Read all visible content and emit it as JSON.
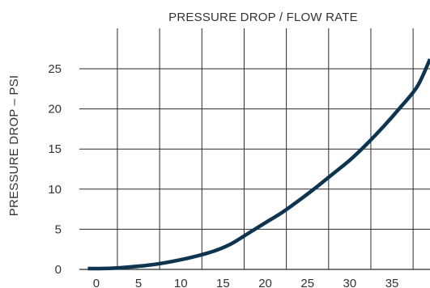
{
  "chart_data": {
    "type": "line",
    "title": "PRESSURE DROP / FLOW RATE",
    "xlabel": "",
    "ylabel": "PRESSURE DROP – PSI",
    "xlim": [
      -2,
      39.5
    ],
    "ylim": [
      0,
      29
    ],
    "x_ticks": [
      0,
      5,
      10,
      15,
      20,
      25,
      30,
      35
    ],
    "y_ticks": [
      0,
      5,
      10,
      15,
      20,
      25
    ],
    "x_tick_labels": [
      "0",
      "5",
      "10",
      "15",
      "20",
      "25",
      "30",
      "35"
    ],
    "y_tick_labels": [
      "0",
      "5",
      "10",
      "15",
      "20",
      "25"
    ],
    "grid": true,
    "series": [
      {
        "color": "#0e3550",
        "x": [
          -1,
          0,
          2,
          4,
          6,
          8,
          10,
          12,
          14,
          16,
          18,
          20,
          22,
          24,
          26,
          28,
          30,
          32,
          34,
          36,
          38,
          39.5
        ],
        "y": [
          0.1,
          0.1,
          0.15,
          0.3,
          0.5,
          0.8,
          1.2,
          1.7,
          2.3,
          3.2,
          4.5,
          5.8,
          7.1,
          8.6,
          10.2,
          11.9,
          13.6,
          15.6,
          17.8,
          20.2,
          22.8,
          26.2
        ]
      }
    ]
  }
}
